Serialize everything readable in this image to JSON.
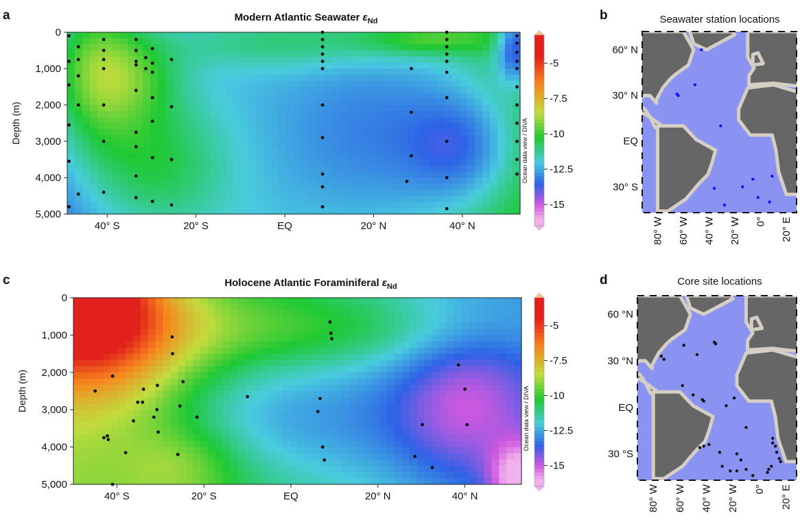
{
  "panels": {
    "a": {
      "label": "a",
      "title": "Modern Atlantic Seawater",
      "symbol": "ε",
      "subscript": "Nd"
    },
    "b": {
      "label": "b",
      "title": "Seawater station locations"
    },
    "c": {
      "label": "c",
      "title": "Holocene Atlantic Foraminiferal",
      "symbol": "ε",
      "subscript": "Nd"
    },
    "d": {
      "label": "d",
      "title": "Core site locations"
    }
  },
  "watermark": "Ocean data view / DIVA",
  "colorbar_ticks": [
    "-5",
    "-7.5",
    "-10",
    "-12.5",
    "-15"
  ],
  "colors": {
    "scale": [
      "#e2211c",
      "#f7861e",
      "#c2dc3e",
      "#1fc934",
      "#49ccde",
      "#2e62e6",
      "#cf58df",
      "#f0b0ec"
    ],
    "station": "#0a1aff",
    "core": "#111111",
    "land": "#666666",
    "shelf": "#d4cec4",
    "ocean": "#8a92f2"
  },
  "chart_data": [
    {
      "type": "heatmap",
      "panel": "a",
      "title": "Modern Atlantic Seawater εNd",
      "xlabel": "",
      "ylabel": "Depth (m)",
      "x_ticks": [
        "40° S",
        "20° S",
        "EQ",
        "20° N",
        "40° N"
      ],
      "x_tick_values": [
        -40,
        -20,
        0,
        20,
        40
      ],
      "y_ticks": [
        "0",
        "1,000",
        "2,000",
        "3,000",
        "4,000",
        "5,000"
      ],
      "y_tick_values": [
        0,
        1000,
        2000,
        3000,
        4000,
        5000
      ],
      "xlim": [
        -49,
        53
      ],
      "ylim": [
        0,
        5000
      ],
      "colorbar": {
        "ticks": [
          -5,
          -7.5,
          -10,
          -12.5,
          -15
        ],
        "range": [
          -3,
          -16.5
        ]
      },
      "points": [
        {
          "x": -48.6,
          "y": 100
        },
        {
          "x": -48.6,
          "y": 800
        },
        {
          "x": -48.6,
          "y": 1450
        },
        {
          "x": -48.6,
          "y": 2550
        },
        {
          "x": -48.6,
          "y": 3550
        },
        {
          "x": -48.6,
          "y": 4800
        },
        {
          "x": -46.5,
          "y": 400
        },
        {
          "x": -46.5,
          "y": 750
        },
        {
          "x": -46.5,
          "y": 1200
        },
        {
          "x": -46.5,
          "y": 2000
        },
        {
          "x": -46.5,
          "y": 4450
        },
        {
          "x": -40.8,
          "y": 200
        },
        {
          "x": -40.8,
          "y": 500
        },
        {
          "x": -40.8,
          "y": 750
        },
        {
          "x": -40.8,
          "y": 1000
        },
        {
          "x": -40.8,
          "y": 2000
        },
        {
          "x": -40.8,
          "y": 3000
        },
        {
          "x": -40.8,
          "y": 4400
        },
        {
          "x": -33.5,
          "y": 200
        },
        {
          "x": -33.5,
          "y": 500
        },
        {
          "x": -33.5,
          "y": 800
        },
        {
          "x": -33.5,
          "y": 900
        },
        {
          "x": -33.5,
          "y": 1600
        },
        {
          "x": -33.5,
          "y": 2750
        },
        {
          "x": -33.5,
          "y": 3150
        },
        {
          "x": -33.5,
          "y": 3950
        },
        {
          "x": -33.5,
          "y": 4550
        },
        {
          "x": -31.3,
          "y": 700
        },
        {
          "x": -31.3,
          "y": 1000
        },
        {
          "x": -29.8,
          "y": 450
        },
        {
          "x": -29.8,
          "y": 850
        },
        {
          "x": -29.8,
          "y": 1100
        },
        {
          "x": -29.8,
          "y": 1800
        },
        {
          "x": -29.8,
          "y": 2450
        },
        {
          "x": -29.8,
          "y": 3450
        },
        {
          "x": -29.8,
          "y": 4650
        },
        {
          "x": -25.5,
          "y": 750
        },
        {
          "x": -25.5,
          "y": 2050
        },
        {
          "x": -25.5,
          "y": 3500
        },
        {
          "x": -25.5,
          "y": 4750
        },
        {
          "x": 8.5,
          "y": 0
        },
        {
          "x": 8.5,
          "y": 200
        },
        {
          "x": 8.5,
          "y": 400
        },
        {
          "x": 8.5,
          "y": 600
        },
        {
          "x": 8.5,
          "y": 800
        },
        {
          "x": 8.5,
          "y": 1000
        },
        {
          "x": 8.5,
          "y": 2000
        },
        {
          "x": 8.5,
          "y": 2900
        },
        {
          "x": 8.5,
          "y": 3900
        },
        {
          "x": 8.5,
          "y": 4250
        },
        {
          "x": 8.5,
          "y": 4800
        },
        {
          "x": 27.5,
          "y": 4100
        },
        {
          "x": 28.5,
          "y": 1000
        },
        {
          "x": 28.5,
          "y": 2200
        },
        {
          "x": 28.5,
          "y": 3400
        },
        {
          "x": 36.5,
          "y": 0
        },
        {
          "x": 36.5,
          "y": 200
        },
        {
          "x": 36.5,
          "y": 400
        },
        {
          "x": 36.5,
          "y": 600
        },
        {
          "x": 36.5,
          "y": 800
        },
        {
          "x": 36.5,
          "y": 1100
        },
        {
          "x": 36.5,
          "y": 1800
        },
        {
          "x": 36.5,
          "y": 3000
        },
        {
          "x": 36.5,
          "y": 4000
        },
        {
          "x": 36.5,
          "y": 4850
        },
        {
          "x": 52.3,
          "y": 100
        },
        {
          "x": 52.3,
          "y": 300
        },
        {
          "x": 52.3,
          "y": 550
        },
        {
          "x": 52.3,
          "y": 800
        },
        {
          "x": 52.3,
          "y": 1000
        },
        {
          "x": 52.3,
          "y": 1500
        },
        {
          "x": 52.3,
          "y": 2000
        },
        {
          "x": 52.3,
          "y": 2500
        },
        {
          "x": 52.3,
          "y": 3000
        },
        {
          "x": 52.3,
          "y": 3500
        },
        {
          "x": 52.3,
          "y": 3900
        }
      ]
    },
    {
      "type": "heatmap",
      "panel": "c",
      "title": "Holocene Atlantic Foraminiferal εNd",
      "xlabel": "",
      "ylabel": "Depth (m)",
      "x_ticks": [
        "40° S",
        "20° S",
        "EQ",
        "20° N",
        "40° N"
      ],
      "x_tick_values": [
        -40,
        -20,
        0,
        20,
        40
      ],
      "y_ticks": [
        "0",
        "1,000",
        "2,000",
        "3,000",
        "4,000",
        "5,000"
      ],
      "y_tick_values": [
        0,
        1000,
        2000,
        3000,
        4000,
        5000
      ],
      "xlim": [
        -50,
        53
      ],
      "ylim": [
        0,
        5000
      ],
      "colorbar": {
        "ticks": [
          -5,
          -7.5,
          -10,
          -12.5,
          -15
        ],
        "range": [
          -3,
          -16.5
        ]
      },
      "points": [
        {
          "x": -45,
          "y": 2500
        },
        {
          "x": -41,
          "y": 2100
        },
        {
          "x": -41,
          "y": 5000
        },
        {
          "x": -43,
          "y": 3750
        },
        {
          "x": -42.2,
          "y": 3700
        },
        {
          "x": -42,
          "y": 3800
        },
        {
          "x": -38,
          "y": 4150
        },
        {
          "x": -36.2,
          "y": 3300
        },
        {
          "x": -35.2,
          "y": 2800
        },
        {
          "x": -34.1,
          "y": 2800
        },
        {
          "x": -33.9,
          "y": 2450
        },
        {
          "x": -31.5,
          "y": 3200
        },
        {
          "x": -30.8,
          "y": 3000
        },
        {
          "x": -30.7,
          "y": 2350
        },
        {
          "x": -30.5,
          "y": 3600
        },
        {
          "x": -27.3,
          "y": 1050
        },
        {
          "x": -27.2,
          "y": 1500
        },
        {
          "x": -26,
          "y": 4200
        },
        {
          "x": -25.5,
          "y": 2900
        },
        {
          "x": -24.8,
          "y": 2250
        },
        {
          "x": -21.6,
          "y": 3200
        },
        {
          "x": -10,
          "y": 2650
        },
        {
          "x": 6.2,
          "y": 3050
        },
        {
          "x": 6.7,
          "y": 2700
        },
        {
          "x": 7.3,
          "y": 4000
        },
        {
          "x": 7.7,
          "y": 4350
        },
        {
          "x": 9,
          "y": 650
        },
        {
          "x": 9.2,
          "y": 950
        },
        {
          "x": 9.4,
          "y": 1100
        },
        {
          "x": 28.5,
          "y": 4250
        },
        {
          "x": 30.2,
          "y": 3400
        },
        {
          "x": 32.5,
          "y": 4550
        },
        {
          "x": 38.5,
          "y": 1800
        },
        {
          "x": 40,
          "y": 2450
        },
        {
          "x": 40.5,
          "y": 3400
        }
      ]
    }
  ],
  "maps": {
    "b": {
      "lat_labels": [
        "60° N",
        "30° N",
        "EQ",
        "30° S"
      ],
      "lon_labels": [
        "80° W",
        "60° W",
        "40° W",
        "20° W",
        "0°",
        "20° E"
      ],
      "stations": [
        {
          "lon": -46,
          "lat": 60
        },
        {
          "lon": -65,
          "lat": 31
        },
        {
          "lon": -64,
          "lat": 30
        },
        {
          "lon": -51,
          "lat": 37
        },
        {
          "lon": -31,
          "lat": 10
        },
        {
          "lon": -36,
          "lat": -31
        },
        {
          "lon": -14,
          "lat": -30
        },
        {
          "lon": -6,
          "lat": -25
        },
        {
          "lon": 9,
          "lat": -23
        },
        {
          "lon": -2,
          "lat": -37
        },
        {
          "lon": 7,
          "lat": -40
        },
        {
          "lon": -28,
          "lat": -42
        }
      ]
    },
    "d": {
      "lat_labels": [
        "60 °N",
        "30 °N",
        "EQ",
        "30 °S"
      ],
      "lon_labels": [
        "80° W",
        "60° W",
        "40° W",
        "20° W",
        "0°",
        "20° E"
      ],
      "cores": [
        {
          "lon": -74,
          "lat": 33
        },
        {
          "lon": -72,
          "lat": 31
        },
        {
          "lon": -57,
          "lat": 40
        },
        {
          "lon": -47,
          "lat": 34
        },
        {
          "lon": -34,
          "lat": 42
        },
        {
          "lon": -33,
          "lat": 41
        },
        {
          "lon": -58,
          "lat": 14
        },
        {
          "lon": -50,
          "lat": 8
        },
        {
          "lon": -43,
          "lat": 5
        },
        {
          "lon": -42,
          "lat": 4
        },
        {
          "lon": -25,
          "lat": 1
        },
        {
          "lon": -19,
          "lat": 6
        },
        {
          "lon": -10,
          "lat": -13
        },
        {
          "lon": -45,
          "lat": -26
        },
        {
          "lon": -42,
          "lat": -25
        },
        {
          "lon": -38,
          "lat": -24
        },
        {
          "lon": -30,
          "lat": -29
        },
        {
          "lon": -17,
          "lat": -30
        },
        {
          "lon": -14,
          "lat": -34
        },
        {
          "lon": -28,
          "lat": -38
        },
        {
          "lon": -22,
          "lat": -41
        },
        {
          "lon": -17,
          "lat": -41
        },
        {
          "lon": -10,
          "lat": -40
        },
        {
          "lon": -5,
          "lat": -44
        },
        {
          "lon": 10,
          "lat": -20
        },
        {
          "lon": 10,
          "lat": -23
        },
        {
          "lon": 12,
          "lat": -25
        },
        {
          "lon": 13,
          "lat": -29
        },
        {
          "lon": 15,
          "lat": -33
        },
        {
          "lon": 16,
          "lat": -35
        },
        {
          "lon": 7,
          "lat": -40
        },
        {
          "lon": 9,
          "lat": -38
        },
        {
          "lon": 6,
          "lat": -42
        }
      ]
    }
  }
}
